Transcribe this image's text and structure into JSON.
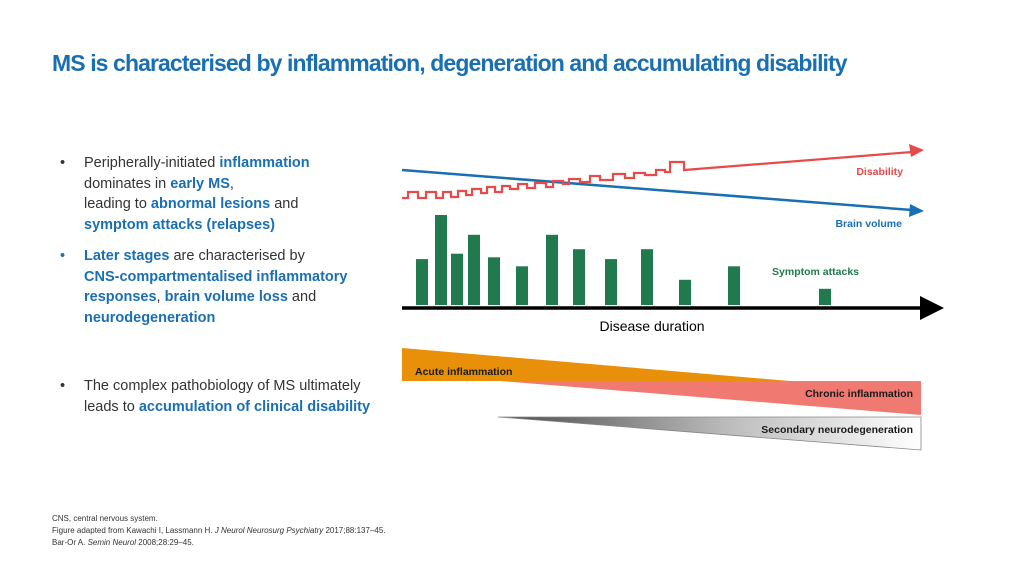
{
  "title": "MS is characterised by inflammation, degeneration and accumulating disability",
  "bullets": [
    {
      "parts": [
        {
          "text": "Peripherally-initiated ",
          "hl": false
        },
        {
          "text": "inflammation",
          "hl": true
        },
        {
          "text": "\ndominates in ",
          "hl": false
        },
        {
          "text": "early MS",
          "hl": true
        },
        {
          "text": ",\nleading to ",
          "hl": false
        },
        {
          "text": "abnormal lesions",
          "hl": true
        },
        {
          "text": " and\n",
          "hl": false
        },
        {
          "text": "symptom attacks (relapses)",
          "hl": true
        }
      ]
    },
    {
      "parts": [
        {
          "text": "Later stages",
          "hl": true
        },
        {
          "text": " are characterised by\n",
          "hl": false
        },
        {
          "text": "CNS-compartmentalised inflammatory responses",
          "hl": true
        },
        {
          "text": ", ",
          "hl": false
        },
        {
          "text": "brain volume loss",
          "hl": true
        },
        {
          "text": " and\n",
          "hl": false
        },
        {
          "text": "neurodegeneration",
          "hl": true
        }
      ]
    },
    {
      "parts": [
        {
          "text": "The complex pathobiology of MS ultimately\nleads to ",
          "hl": false
        },
        {
          "text": "accumulation of clinical disability",
          "hl": true
        }
      ]
    }
  ],
  "figure": {
    "labels": {
      "disability": "Disability",
      "brain_volume": "Brain volume",
      "symptom_attacks": "Symptom attacks",
      "disease_duration": "Disease duration",
      "acute_inflammation": "Acute inflammation",
      "chronic_inflammation": "Chronic inflammation",
      "secondary_neurodegeneration": "Secondary neurodegeneration"
    },
    "colors": {
      "disability": "#e84a4a",
      "brain_volume": "#1a6fb3",
      "bars": "#217a4d",
      "symptom_label": "#217a4d",
      "acute": "#e8900a",
      "chronic": "#f07a72",
      "axis": "#000000"
    },
    "symptom_attack_levels": [
      0.51,
      1.0,
      0.57,
      0.78,
      0.53,
      0.43,
      0.78,
      0.62,
      0.51,
      0.62,
      0.28,
      0.43,
      0.18
    ]
  },
  "footnotes": {
    "line1": "CNS, central nervous system.",
    "line2_pre": "Figure adapted from Kawachi I, Lassmann H. ",
    "line2_journal": "J Neurol Neurosurg Psychiatry",
    "line2_post": " 2017;88:137–45.",
    "line3_pre": "Bar-Or A. ",
    "line3_journal": "Semin Neurol",
    "line3_post": " 2008;28:29–45."
  }
}
